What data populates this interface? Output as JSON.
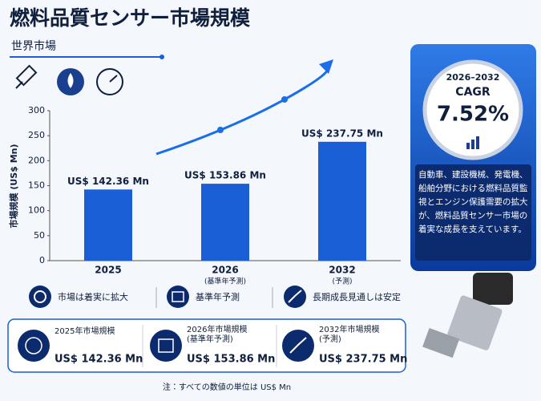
{
  "header": {
    "title": "燃料品質センサー市場規模",
    "subtitle": "世界市場"
  },
  "chart_data": {
    "type": "bar",
    "y_label": "市場規模 (US$ Mn)",
    "categories": [
      "2025",
      "2026",
      "2032"
    ],
    "category_notes": [
      null,
      "(基準年予測)",
      "(予測)"
    ],
    "values": [
      142.36,
      153.86,
      237.75
    ],
    "value_labels": [
      "US$ 142.36 Mn",
      "US$ 153.86 Mn",
      "US$ 237.75 Mn"
    ],
    "color": "#1a5fd6",
    "ylim": [
      0,
      300
    ],
    "yticks": [
      0,
      50,
      100,
      150,
      200,
      250,
      300
    ],
    "grid": false
  },
  "cagr": {
    "period": "2026–2032",
    "label": "CAGR",
    "value": "7.52%"
  },
  "description": "自動車、建設機械、発電機、船舶分野における燃料品質監視とエンジン保護需要の拡大が、燃料品質センサー市場の着実な成長を支えています。",
  "features": [
    "市場は着実に拡大",
    "基準年予測",
    "長期成長見通しは安定"
  ],
  "cards": [
    {
      "label": "2025年市場規模",
      "value": "US$ 142.36 Mn"
    },
    {
      "label": "2026年市場規模\n(基準年予測)",
      "value": "US$ 153.86 Mn"
    },
    {
      "label": "2032年市場規模\n(予測)",
      "value": "US$ 237.75 Mn"
    }
  ],
  "footnote": "注：すべての数値の単位は US$ Mn"
}
